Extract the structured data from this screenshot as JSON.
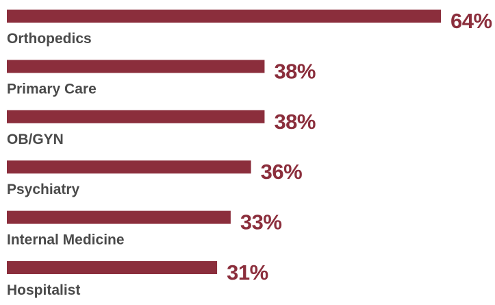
{
  "chart_data": {
    "type": "bar",
    "orientation": "horizontal",
    "categories": [
      "Orthopedics",
      "Primary Care",
      "OB/GYN",
      "Psychiatry",
      "Internal Medicine",
      "Hospitalist"
    ],
    "values": [
      64,
      38,
      38,
      36,
      33,
      31
    ],
    "value_labels": [
      "64%",
      "38%",
      "38%",
      "36%",
      "33%",
      "31%"
    ],
    "unit": "%",
    "xlim": [
      0,
      64
    ],
    "grid": false,
    "legend": "none",
    "bar_color": "#8b2e3c",
    "label_color": "#4a4a4a"
  }
}
